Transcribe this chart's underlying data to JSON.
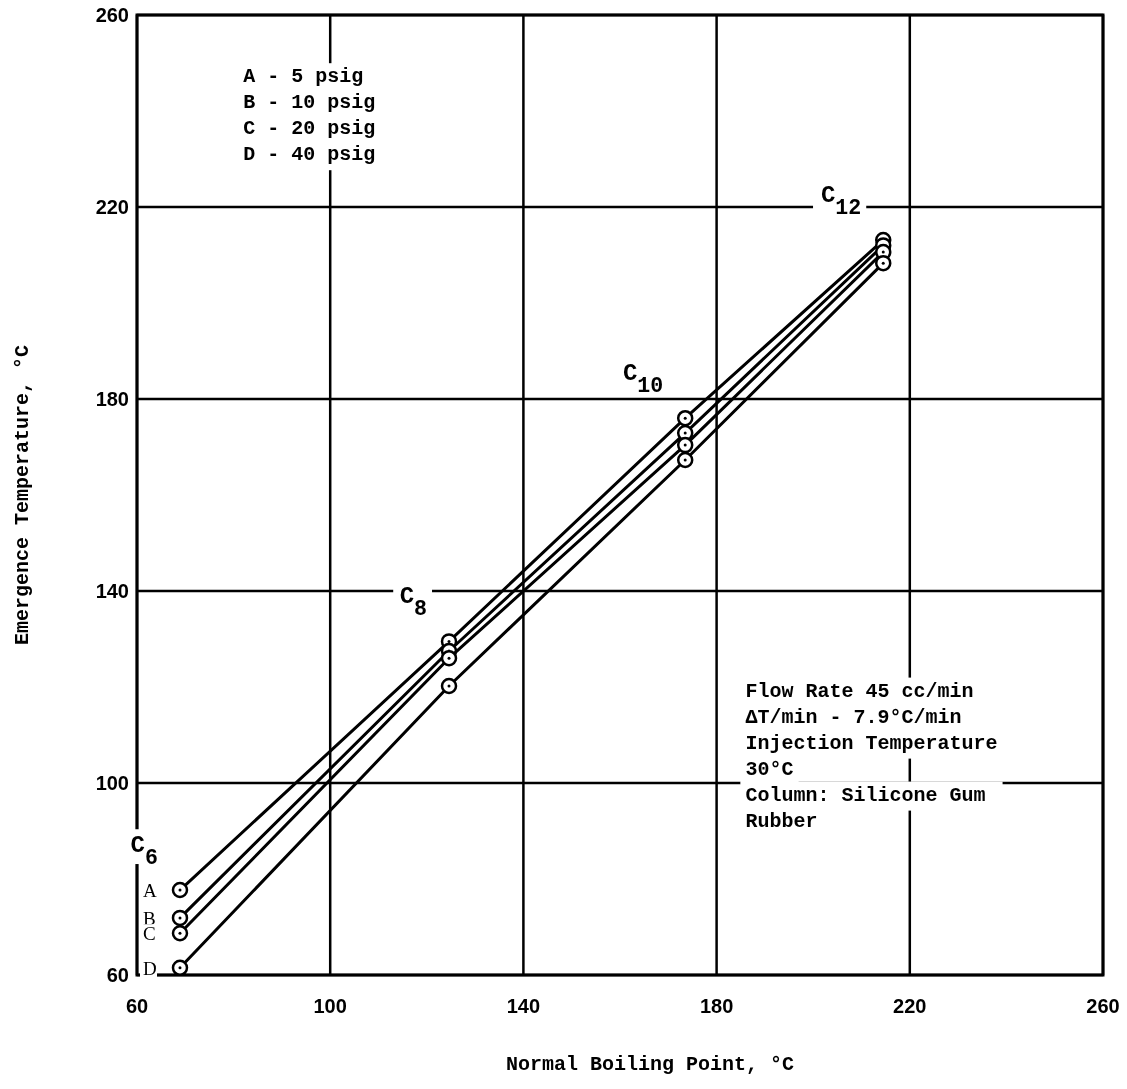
{
  "chart_data": {
    "type": "line",
    "xlabel": "Normal Boiling Point, °C",
    "ylabel": "Emergence Temperature, °C",
    "x": [
      68.9,
      124.6,
      173.5,
      214.5
    ],
    "series": [
      {
        "name": "A",
        "color": "#000000",
        "values": [
          77.7,
          129.5,
          176.0,
          213.1
        ]
      },
      {
        "name": "B",
        "color": "#000000",
        "values": [
          71.9,
          127.5,
          172.9,
          212.0
        ]
      },
      {
        "name": "C",
        "color": "#000000",
        "values": [
          68.7,
          126.0,
          170.4,
          210.6
        ]
      },
      {
        "name": "D",
        "color": "#000000",
        "values": [
          61.5,
          120.2,
          167.3,
          208.3
        ]
      }
    ],
    "xlim": [
      60,
      260
    ],
    "xticks": [
      60,
      100,
      140,
      180,
      220,
      260
    ],
    "ylim": [
      60,
      260
    ],
    "yticks": [
      60,
      100,
      140,
      180,
      220,
      260
    ],
    "grid": true,
    "marker": "circle",
    "line_style": "solid",
    "annotations": [
      {
        "text": "C$_{6}$",
        "x": 68.9,
        "y": 77.7
      },
      {
        "text": "C$_{8}$",
        "x": 124.6,
        "y": 129.5
      },
      {
        "text": "C$_{10}$",
        "x": 173.5,
        "y": 176.0
      },
      {
        "text": "C$_{12}$",
        "x": 214.5,
        "y": 213.1
      },
      "A - 5 psig",
      "B - 10 psig",
      "C - 20 psig",
      "D - 40 psig",
      "Flow Rate 45 cc/min",
      "ΔT/min - 7.9°C/min",
      "Injection Temperature",
      "30°C",
      "Column:  Silicone Gum",
      "Rubber"
    ]
  }
}
